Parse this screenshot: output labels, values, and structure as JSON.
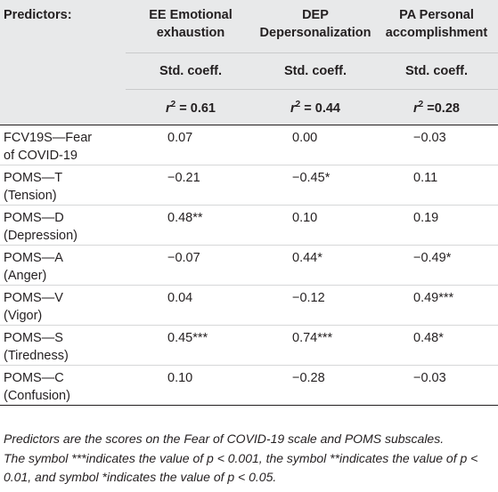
{
  "table": {
    "header": {
      "predictors_label": "Predictors:",
      "columns": [
        {
          "line1": "EE Emotional",
          "line2": "exhaustion",
          "coeff_label": "Std. coeff.",
          "r2_prefix": "r",
          "r2_sup": "2",
          "r2_value": "= 0.61"
        },
        {
          "line1": "DEP",
          "line2": "Depersonalization",
          "coeff_label": "Std. coeff.",
          "r2_prefix": "r",
          "r2_sup": "2",
          "r2_value": "= 0.44"
        },
        {
          "line1": "PA Personal",
          "line2": "accomplishment",
          "coeff_label": "Std. coeff.",
          "r2_prefix": "r",
          "r2_sup": "2",
          "r2_value": "=0.28"
        }
      ]
    },
    "rows": [
      {
        "pred1": "FCV19S—Fear",
        "pred2": "of COVID-19",
        "ee": "0.07",
        "dep": "0.00",
        "pa": "−0.03"
      },
      {
        "pred1": "POMS—T",
        "pred2": "(Tension)",
        "ee": "−0.21",
        "dep": "−0.45*",
        "pa": "0.11"
      },
      {
        "pred1": "POMS—D",
        "pred2": "(Depression)",
        "ee": "0.48**",
        "dep": "0.10",
        "pa": "0.19"
      },
      {
        "pred1": "POMS—A",
        "pred2": "(Anger)",
        "ee": "−0.07",
        "dep": "0.44*",
        "pa": "−0.49*"
      },
      {
        "pred1": "POMS—V",
        "pred2": "(Vigor)",
        "ee": "0.04",
        "dep": "−0.12",
        "pa": "0.49***"
      },
      {
        "pred1": "POMS—S",
        "pred2": "(Tiredness)",
        "ee": "0.45***",
        "dep": "0.74***",
        "pa": "0.48*"
      },
      {
        "pred1": "POMS—C",
        "pred2": "(Confusion)",
        "ee": "0.10",
        "dep": "−0.28",
        "pa": "−0.03"
      }
    ],
    "notes": {
      "line1": "Predictors are the scores on the Fear of COVID-19 scale and POMS subscales.",
      "line2": "The symbol ***indicates the value of p < 0.001, the symbol **indicates the value of p < 0.01, and symbol *indicates the value of p < 0.05."
    }
  }
}
